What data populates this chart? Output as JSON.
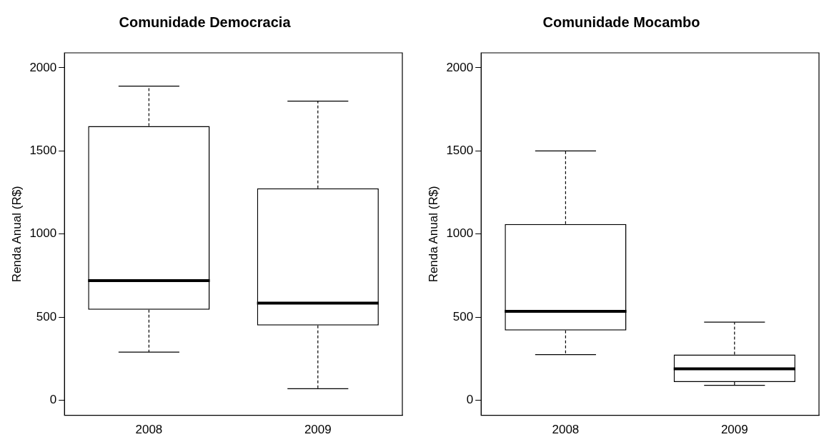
{
  "chart_data": [
    {
      "type": "box",
      "title": "Comunidade Democracia",
      "ylabel": "Renda Anual (R$)",
      "categories": [
        "2008",
        "2009"
      ],
      "boxes": [
        {
          "low": 290,
          "q1": 545,
          "median": 720,
          "q3": 1650,
          "high": 1890
        },
        {
          "low": 70,
          "q1": 450,
          "median": 585,
          "q3": 1275,
          "high": 1800
        }
      ],
      "ylim": [
        -90,
        2090
      ],
      "yticks": [
        0,
        500,
        1000,
        1500,
        2000
      ],
      "grid": false
    },
    {
      "type": "box",
      "title": "Comunidade Mocambo",
      "ylabel": "Renda Anual (R$)",
      "categories": [
        "2008",
        "2009"
      ],
      "boxes": [
        {
          "low": 275,
          "q1": 420,
          "median": 535,
          "q3": 1060,
          "high": 1500
        },
        {
          "low": 90,
          "q1": 110,
          "median": 190,
          "q3": 275,
          "high": 470
        }
      ],
      "ylim": [
        -90,
        2090
      ],
      "yticks": [
        0,
        500,
        1000,
        1500,
        2000
      ],
      "grid": false
    }
  ]
}
